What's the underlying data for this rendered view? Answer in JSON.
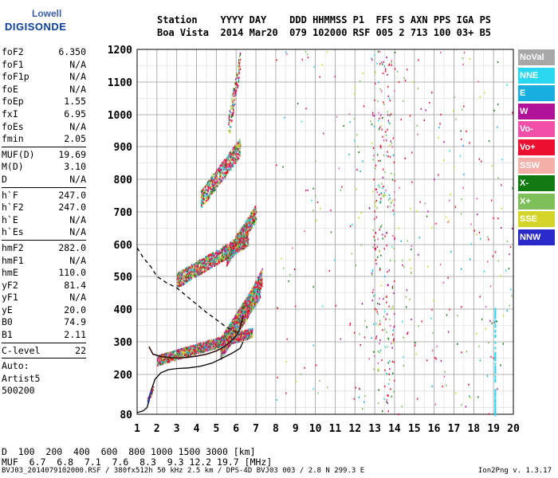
{
  "logo": {
    "line1": "Lowell",
    "line2": "DIGISONDE"
  },
  "header": {
    "row1": "Station    YYYY DAY    DDD HHMMSS P1  FFS S AXN PPS IGA PS",
    "row2": "Boa Vista  2014 Mar20  079 102000 RSF 005 2 713 100 03+ B5"
  },
  "params": [
    {
      "name": "foF2",
      "value": "6.350"
    },
    {
      "name": "foF1",
      "value": "N/A"
    },
    {
      "name": "foF1p",
      "value": "N/A"
    },
    {
      "name": "foE",
      "value": "N/A"
    },
    {
      "name": "foEp",
      "value": "1.55"
    },
    {
      "name": "fxI",
      "value": "6.95"
    },
    {
      "name": "foEs",
      "value": "N/A"
    },
    {
      "name": "fmin",
      "value": "2.05"
    },
    {
      "sep": true
    },
    {
      "name": "MUF(D)",
      "value": "19.69"
    },
    {
      "name": "M(D)",
      "value": "3.10"
    },
    {
      "name": "D",
      "value": "N/A"
    },
    {
      "sep": true
    },
    {
      "name": "h`F",
      "value": "247.0"
    },
    {
      "name": "h`F2",
      "value": "247.0"
    },
    {
      "name": "h`E",
      "value": "N/A"
    },
    {
      "name": "h`Es",
      "value": "N/A"
    },
    {
      "sep": true
    },
    {
      "name": "hmF2",
      "value": "282.0"
    },
    {
      "name": "hmF1",
      "value": "N/A"
    },
    {
      "name": "hmE",
      "value": "110.0"
    },
    {
      "name": "yF2",
      "value": "81.4"
    },
    {
      "name": "yF1",
      "value": "N/A"
    },
    {
      "name": "yE",
      "value": "20.0"
    },
    {
      "name": "B0",
      "value": "74.9"
    },
    {
      "name": "B1",
      "value": "2.11"
    },
    {
      "sep": true
    },
    {
      "name": "C-level",
      "value": "22"
    },
    {
      "sep": true
    }
  ],
  "auto": {
    "line1": "Auto:",
    "line2": "Artist5",
    "line3": "500200"
  },
  "muf_table": {
    "d_label": "D",
    "d_values": "  100  200  400  600  800 1000 1500 3000 [km]",
    "muf_label": "MUF",
    "muf_values": "  6.7  6.8  7.1  7.6  8.3  9.3 12.2 19.7 [MHz]"
  },
  "footer": "BVJ03_2014079102000.RSF / 380fx512h 50 kHz 2.5 km / DPS-4D BVJ03 003 / 2.8 N 299.3 E",
  "version": "Ion2Png v. 1.3.17",
  "legend": [
    {
      "label": "NoVal",
      "color": "#a8a8a8"
    },
    {
      "label": "NNE",
      "color": "#29d8f0"
    },
    {
      "label": "E",
      "color": "#18aee0"
    },
    {
      "label": "W",
      "color": "#b0139a"
    },
    {
      "label": "Vo-",
      "color": "#f050a8"
    },
    {
      "label": "Vo+",
      "color": "#ee1030"
    },
    {
      "label": "SSW",
      "color": "#f4b0a8"
    },
    {
      "label": "X-",
      "color": "#117a11"
    },
    {
      "label": "X+",
      "color": "#7ebf5a"
    },
    {
      "label": "SSE",
      "color": "#d4d42a"
    },
    {
      "label": "NNW",
      "color": "#2a2ac8"
    }
  ],
  "chart_data": {
    "type": "scatter",
    "xlim": [
      1,
      20
    ],
    "ylim": [
      80,
      1200
    ],
    "xticks": [
      1,
      2,
      3,
      4,
      5,
      6,
      7,
      8,
      9,
      10,
      11,
      12,
      13,
      14,
      15,
      16,
      17,
      18,
      19,
      20
    ],
    "yticks": [
      80,
      200,
      300,
      400,
      500,
      600,
      700,
      800,
      900,
      1000,
      1100,
      1200
    ],
    "grid": true,
    "trace_profile": {
      "x": [
        1.0,
        1.3,
        1.5,
        1.6,
        1.7,
        1.9,
        2.2,
        2.6,
        3.0,
        3.6,
        4.2,
        4.8,
        5.3,
        5.8,
        6.2,
        6.35
      ],
      "y": [
        85,
        90,
        100,
        120,
        150,
        185,
        205,
        215,
        218,
        220,
        225,
        235,
        250,
        265,
        280,
        300
      ]
    },
    "trace_dashed": {
      "x": [
        1.0,
        1.3,
        1.7,
        2.0,
        2.5,
        3.0,
        3.5,
        4.0,
        4.5,
        5.0,
        5.5,
        6.0
      ],
      "y": [
        590,
        560,
        530,
        500,
        480,
        465,
        440,
        415,
        390,
        368,
        345,
        330
      ]
    },
    "trace_f2": {
      "x": [
        1.6,
        1.8,
        2.2,
        2.6,
        3.0,
        3.5,
        4.0,
        4.5,
        5.0,
        5.4,
        5.7,
        6.0,
        6.2,
        6.35
      ],
      "y": [
        285,
        262,
        255,
        252,
        250,
        252,
        256,
        262,
        272,
        285,
        300,
        318,
        340,
        380
      ]
    },
    "trace_e": {
      "x": [
        1.55,
        1.6,
        1.7
      ],
      "y": [
        115,
        130,
        150
      ]
    }
  }
}
